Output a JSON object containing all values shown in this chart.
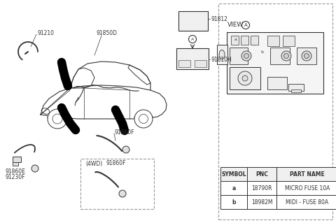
{
  "bg_color": "#ffffff",
  "line_color": "#333333",
  "dashed_color": "#999999",
  "table_headers": [
    "SYMBOL",
    "PNC",
    "PART NAME"
  ],
  "table_rows": [
    [
      "a",
      "18790R",
      "MICRO FUSE 10A"
    ],
    [
      "b",
      "18982M",
      "MIDI - FUSE 80A"
    ]
  ],
  "view_text": "VIEW",
  "view_circle": "A",
  "fuse_box_top_label": "91812",
  "fuse_box_main_label": "91810H",
  "label_91210": "91210",
  "label_91850D": "91850D",
  "label_91860F_1": "91860F",
  "label_91860E": "91860E",
  "label_91230F": "91230F",
  "label_4wd": "(4WD)",
  "label_91860F_2": "91860F"
}
